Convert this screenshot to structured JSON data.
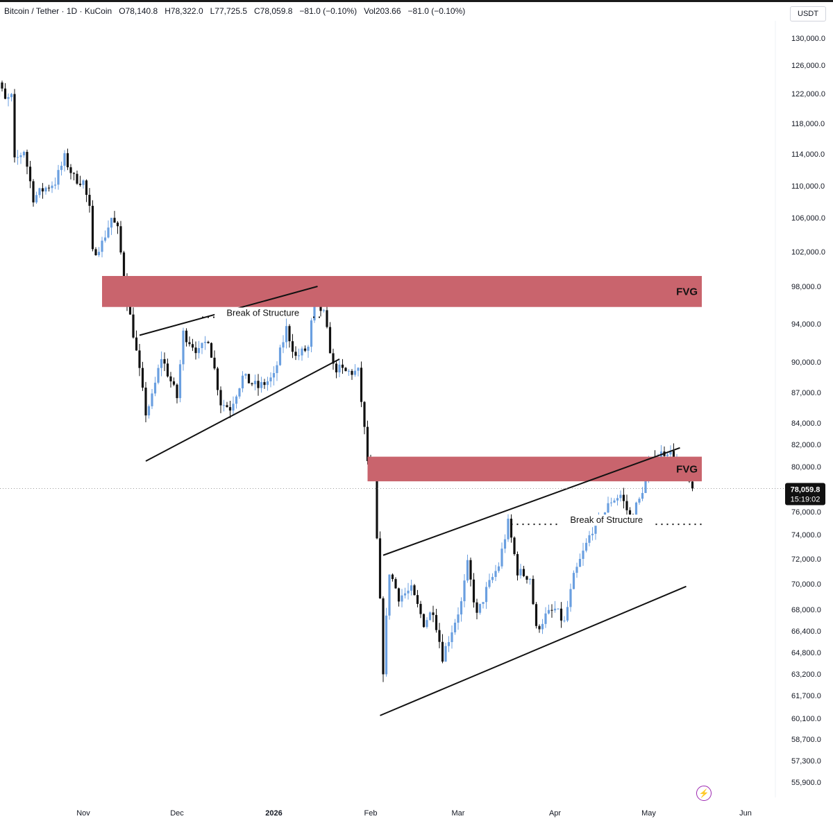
{
  "header": {
    "symbol": "Bitcoin / Tether · 1D · KuCoin",
    "open": "O78,140.8",
    "high": "H78,322.0",
    "low": "L77,725.5",
    "close": "C78,059.8",
    "change": "−81.0 (−0.10%)",
    "volume": "Vol203.66",
    "volume_change": "−81.0 (−0.10%)"
  },
  "currency_label": "USDT",
  "last_price_label": "78,059.8",
  "countdown_label": "15:19:02",
  "colors": {
    "up": "#6a9fe0",
    "down": "#111111",
    "fvg": "#c9646d",
    "axis_text": "#131722",
    "grid": "#f0f3fa"
  },
  "icons": {
    "alert": "lightning-icon"
  },
  "chart_data": {
    "type": "candlestick",
    "title": "",
    "xlabel": "",
    "ylabel": "",
    "ylim": [
      55000,
      131000
    ],
    "grid": false,
    "x_ticks": [
      "Nov",
      "Dec",
      "2026",
      "Feb",
      "Mar",
      "Apr",
      "May",
      "Jun"
    ],
    "y_ticks": [
      "130,000.0",
      "126,000.0",
      "122,000.0",
      "118,000.0",
      "114,000.0",
      "110,000.0",
      "106,000.0",
      "102,000.0",
      "98,000.0",
      "94,000.0",
      "90,000.0",
      "87,000.0",
      "84,000.0",
      "82,000.0",
      "80,000.0",
      "76,000.0",
      "74,000.0",
      "72,000.0",
      "70,000.0",
      "68,000.0",
      "66,400.0",
      "64,800.0",
      "63,200.0",
      "61,700.0",
      "60,100.0",
      "58,700.0",
      "57,300.0",
      "55,900.0"
    ],
    "price_series": [
      [
        "2025-10-02",
        118500
      ],
      [
        "2025-10-05",
        123500
      ],
      [
        "2025-10-07",
        121000
      ],
      [
        "2025-10-09",
        121500
      ],
      [
        "2025-10-10",
        113000
      ],
      [
        "2025-10-13",
        114500
      ],
      [
        "2025-10-16",
        108500
      ],
      [
        "2025-10-19",
        109500
      ],
      [
        "2025-10-23",
        110500
      ],
      [
        "2025-10-26",
        113500
      ],
      [
        "2025-10-29",
        111000
      ],
      [
        "2025-11-01",
        110500
      ],
      [
        "2025-11-03",
        107000
      ],
      [
        "2025-11-04",
        101800
      ],
      [
        "2025-11-07",
        103000
      ],
      [
        "2025-11-10",
        106000
      ],
      [
        "2025-11-12",
        104500
      ],
      [
        "2025-11-15",
        96500
      ],
      [
        "2025-11-17",
        93000
      ],
      [
        "2025-11-21",
        85000
      ],
      [
        "2025-11-23",
        86500
      ],
      [
        "2025-11-26",
        90500
      ],
      [
        "2025-12-01",
        86500
      ],
      [
        "2025-12-03",
        93000
      ],
      [
        "2025-12-08",
        91000
      ],
      [
        "2025-12-11",
        92500
      ],
      [
        "2025-12-15",
        86000
      ],
      [
        "2025-12-18",
        85500
      ],
      [
        "2025-12-22",
        88500
      ],
      [
        "2025-12-27",
        87500
      ],
      [
        "2026-01-01",
        88500
      ],
      [
        "2026-01-05",
        93500
      ],
      [
        "2026-01-08",
        90500
      ],
      [
        "2026-01-12",
        91500
      ],
      [
        "2026-01-14",
        96500
      ],
      [
        "2026-01-17",
        95000
      ],
      [
        "2026-01-20",
        89500
      ],
      [
        "2026-01-24",
        89000
      ],
      [
        "2026-01-28",
        89000
      ],
      [
        "2026-01-31",
        80500
      ],
      [
        "2026-02-02",
        78500
      ],
      [
        "2026-02-05",
        63500
      ],
      [
        "2026-02-07",
        71000
      ],
      [
        "2026-02-10",
        69000
      ],
      [
        "2026-02-14",
        69500
      ],
      [
        "2026-02-18",
        67000
      ],
      [
        "2026-02-21",
        68000
      ],
      [
        "2026-02-24",
        64500
      ],
      [
        "2026-02-27",
        66500
      ],
      [
        "2026-03-02",
        68500
      ],
      [
        "2026-03-04",
        71500
      ],
      [
        "2026-03-07",
        67500
      ],
      [
        "2026-03-10",
        69500
      ],
      [
        "2026-03-14",
        71500
      ],
      [
        "2026-03-17",
        75000
      ],
      [
        "2026-03-20",
        71000
      ],
      [
        "2026-03-24",
        70500
      ],
      [
        "2026-03-26",
        66500
      ],
      [
        "2026-03-29",
        67500
      ],
      [
        "2026-04-01",
        68000
      ],
      [
        "2026-04-04",
        67000
      ],
      [
        "2026-04-07",
        70500
      ],
      [
        "2026-04-10",
        72500
      ],
      [
        "2026-04-13",
        74500
      ],
      [
        "2026-04-16",
        75500
      ],
      [
        "2026-04-19",
        77000
      ],
      [
        "2026-04-22",
        77500
      ],
      [
        "2026-04-25",
        75500
      ],
      [
        "2026-04-28",
        77000
      ],
      [
        "2026-05-01",
        80000
      ],
      [
        "2026-05-04",
        81000
      ],
      [
        "2026-05-07",
        81500
      ],
      [
        "2026-05-10",
        80500
      ],
      [
        "2026-05-13",
        79000
      ],
      [
        "2026-05-15",
        78059.8
      ]
    ],
    "zones": [
      {
        "label": "FVG",
        "from": "2025-11-07",
        "to": "2026-05-18",
        "ylow": 95800,
        "yhigh": 99200
      },
      {
        "label": "FVG",
        "from": "2026-01-31",
        "to": "2026-05-18",
        "ylow": 78700,
        "yhigh": 80900
      }
    ],
    "trendlines": [
      {
        "from": [
          "2025-11-19",
          92800
        ],
        "to": [
          "2026-01-15",
          98000
        ]
      },
      {
        "from": [
          "2025-11-21",
          80500
        ],
        "to": [
          "2026-01-22",
          90300
        ]
      },
      {
        "from": [
          "2026-02-05",
          72300
        ],
        "to": [
          "2026-05-11",
          81700
        ]
      },
      {
        "from": [
          "2026-02-04",
          60300
        ],
        "to": [
          "2026-05-13",
          69800
        ]
      }
    ],
    "levels": [
      {
        "label": "Break of Structure",
        "from": "2025-12-09",
        "to": "2026-01-17",
        "y": 94700
      },
      {
        "label": "Break of Structure",
        "from": "2026-03-18",
        "to": "2026-05-18",
        "y": 74900
      }
    ],
    "last_price": 78059.8
  }
}
